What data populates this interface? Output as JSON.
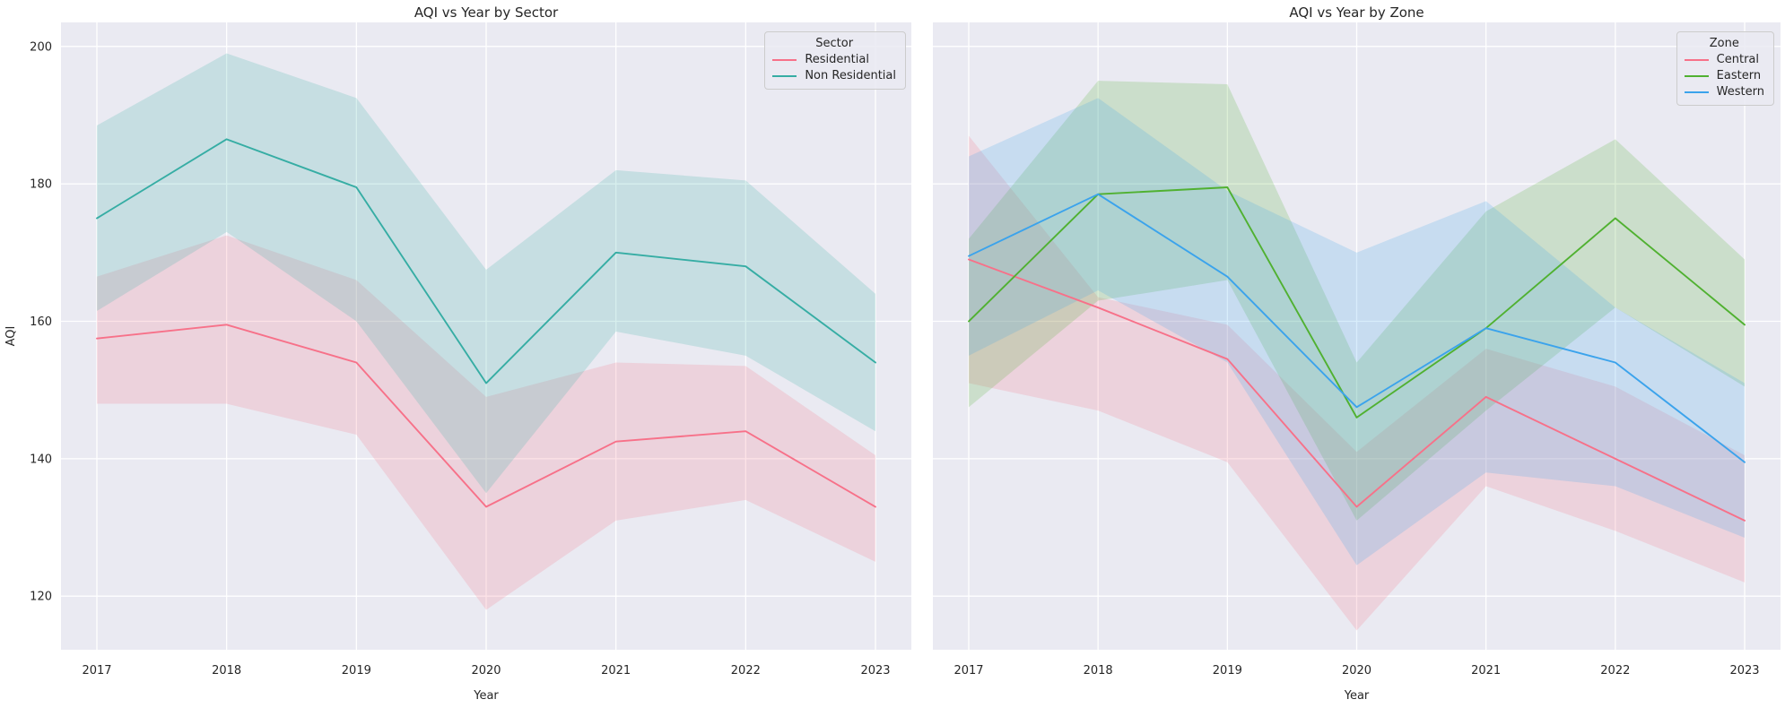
{
  "figure": {
    "background": "#ffffff",
    "plot_background": "#eaeaf2",
    "grid_color": "#ffffff",
    "text_color": "#262626",
    "band_opacity": 0.2
  },
  "chart_data": [
    {
      "type": "line",
      "title": "AQI vs Year by Sector",
      "xlabel": "Year",
      "ylabel": "AQI",
      "x": [
        2017,
        2018,
        2019,
        2020,
        2021,
        2022,
        2023
      ],
      "yticks": [
        120,
        140,
        160,
        180,
        200
      ],
      "ylim": [
        112.2,
        203.5
      ],
      "grid": true,
      "legend_title": "Sector",
      "legend_position": "upper right",
      "show_y_tick_labels": true,
      "series": [
        {
          "name": "Residential",
          "color": "#f77189",
          "values": [
            157.5,
            159.5,
            154,
            133,
            142.5,
            144,
            133
          ],
          "ci_low": [
            148,
            148,
            143.5,
            118,
            131,
            134,
            125
          ],
          "ci_high": [
            166.5,
            172.5,
            166,
            149,
            154,
            153.5,
            140.5
          ]
        },
        {
          "name": "Non Residential",
          "color": "#36ada4",
          "values": [
            175,
            186.5,
            179.5,
            151,
            170,
            168,
            154
          ],
          "ci_low": [
            161.5,
            173,
            160,
            135,
            158.5,
            155,
            144
          ],
          "ci_high": [
            188.5,
            199,
            192.5,
            167.5,
            182,
            180.5,
            164
          ]
        }
      ]
    },
    {
      "type": "line",
      "title": "AQI vs Year by Zone",
      "xlabel": "Year",
      "ylabel": "",
      "x": [
        2017,
        2018,
        2019,
        2020,
        2021,
        2022,
        2023
      ],
      "yticks": [
        120,
        140,
        160,
        180,
        200
      ],
      "ylim": [
        112.2,
        203.5
      ],
      "grid": true,
      "legend_title": "Zone",
      "legend_position": "upper right",
      "show_y_tick_labels": false,
      "series": [
        {
          "name": "Central",
          "color": "#f77189",
          "values": [
            169,
            162,
            154.5,
            133,
            149,
            140,
            131
          ],
          "ci_low": [
            151,
            147,
            139.5,
            115,
            136,
            129.5,
            122
          ],
          "ci_high": [
            187,
            163.5,
            159.5,
            141,
            156,
            150.5,
            140.5
          ]
        },
        {
          "name": "Eastern",
          "color": "#50b131",
          "values": [
            160,
            178.5,
            179.5,
            146,
            159,
            175,
            159.5
          ],
          "ci_low": [
            147.5,
            163,
            166,
            131,
            147,
            162,
            150.5
          ],
          "ci_high": [
            172,
            195,
            194.5,
            154,
            176,
            186.5,
            169
          ]
        },
        {
          "name": "Western",
          "color": "#3ba3ec",
          "values": [
            169.5,
            178.5,
            166.5,
            147.5,
            159,
            154,
            139.5
          ],
          "ci_low": [
            155,
            164.5,
            154,
            124.5,
            138,
            136,
            128.5
          ],
          "ci_high": [
            184,
            192.5,
            179,
            170,
            177.5,
            162,
            151
          ]
        }
      ]
    }
  ]
}
